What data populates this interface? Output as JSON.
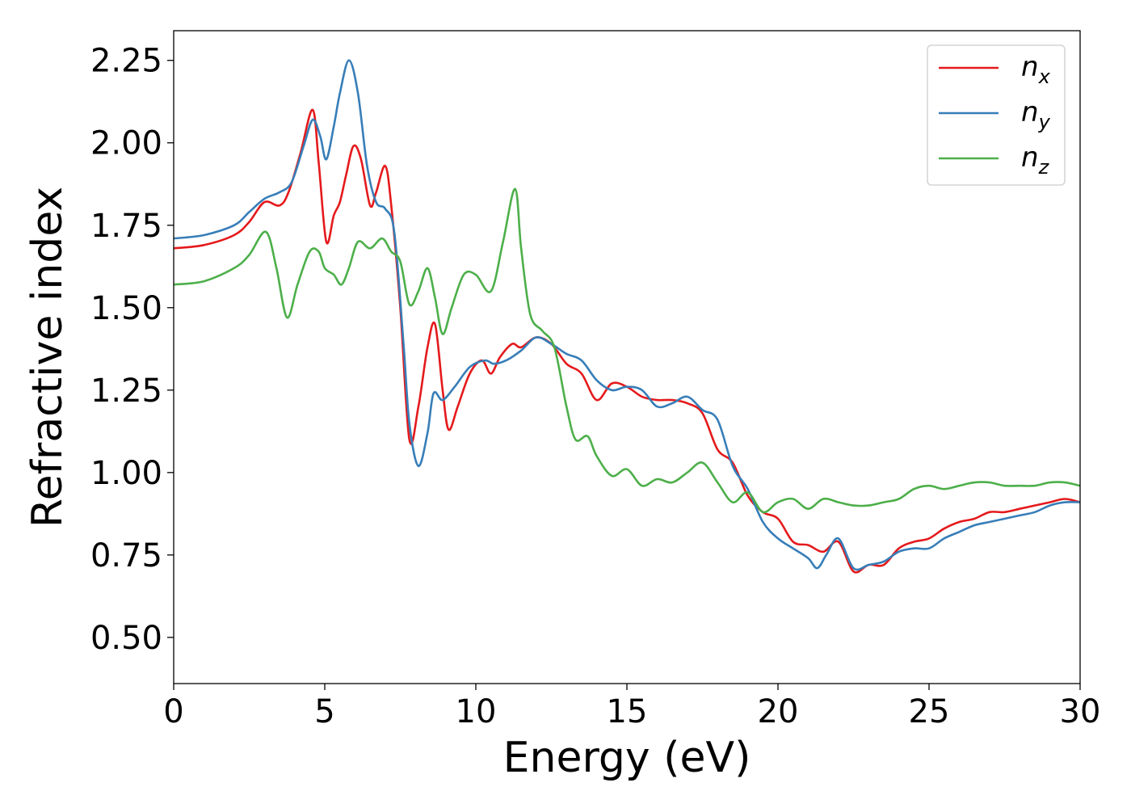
{
  "chart_data": {
    "type": "line",
    "title": "",
    "xlabel": "Energy (eV)",
    "ylabel": "Refractive index",
    "xlim": [
      0,
      30
    ],
    "ylim": [
      0.36,
      2.34
    ],
    "xticks": [
      0,
      5,
      10,
      15,
      20,
      25,
      30
    ],
    "xtick_labels": [
      "0",
      "5",
      "10",
      "15",
      "20",
      "25",
      "30"
    ],
    "yticks": [
      0.5,
      0.75,
      1.0,
      1.25,
      1.5,
      1.75,
      2.0,
      2.25
    ],
    "ytick_labels": [
      "0.50",
      "0.75",
      "1.00",
      "1.25",
      "1.50",
      "1.75",
      "2.00",
      "2.25"
    ],
    "grid": false,
    "legend_position": "top-right",
    "series": [
      {
        "name": "n",
        "subscript": "x",
        "color": "#e41a1c",
        "x": [
          0,
          1,
          2,
          2.5,
          3,
          3.5,
          3.8,
          4.2,
          4.6,
          4.8,
          5.05,
          5.3,
          5.5,
          5.7,
          5.95,
          6.2,
          6.5,
          6.7,
          7.0,
          7.2,
          7.5,
          7.8,
          8.1,
          8.4,
          8.65,
          8.9,
          9.1,
          9.4,
          9.8,
          10.2,
          10.5,
          10.8,
          11.2,
          11.5,
          12.0,
          12.5,
          13.0,
          13.5,
          14.0,
          14.5,
          15.0,
          15.5,
          16.0,
          16.5,
          17.0,
          17.5,
          18.0,
          18.5,
          19.0,
          19.5,
          20.0,
          20.5,
          21.0,
          21.5,
          22.0,
          22.5,
          23.0,
          23.5,
          24.0,
          24.5,
          25.0,
          25.5,
          26.0,
          26.5,
          27.0,
          27.5,
          28.0,
          28.5,
          29.0,
          29.5,
          30.0
        ],
        "y": [
          1.68,
          1.69,
          1.72,
          1.76,
          1.82,
          1.81,
          1.85,
          1.97,
          2.1,
          1.94,
          1.7,
          1.78,
          1.82,
          1.9,
          1.99,
          1.95,
          1.81,
          1.85,
          1.93,
          1.81,
          1.5,
          1.1,
          1.2,
          1.38,
          1.45,
          1.25,
          1.13,
          1.2,
          1.3,
          1.34,
          1.3,
          1.35,
          1.39,
          1.38,
          1.41,
          1.39,
          1.33,
          1.3,
          1.22,
          1.27,
          1.26,
          1.23,
          1.22,
          1.22,
          1.21,
          1.18,
          1.07,
          1.03,
          0.93,
          0.88,
          0.86,
          0.79,
          0.78,
          0.76,
          0.79,
          0.7,
          0.72,
          0.72,
          0.77,
          0.79,
          0.8,
          0.83,
          0.85,
          0.86,
          0.88,
          0.88,
          0.89,
          0.9,
          0.91,
          0.92,
          0.91
        ]
      },
      {
        "name": "n",
        "subscript": "y",
        "color": "#377eb8",
        "x": [
          0,
          1,
          2,
          2.5,
          3,
          3.5,
          3.9,
          4.3,
          4.6,
          4.85,
          5.05,
          5.3,
          5.5,
          5.8,
          6.1,
          6.4,
          6.7,
          7.0,
          7.3,
          7.6,
          7.8,
          8.1,
          8.4,
          8.6,
          8.9,
          9.3,
          9.8,
          10.3,
          10.6,
          11.0,
          11.5,
          12.0,
          12.5,
          13.0,
          13.5,
          14.0,
          14.5,
          15.0,
          15.5,
          16.0,
          16.5,
          17.0,
          17.5,
          18.0,
          18.5,
          19.0,
          19.5,
          20.0,
          20.5,
          21.0,
          21.3,
          21.6,
          22.0,
          22.5,
          23.0,
          23.5,
          24.0,
          24.5,
          25.0,
          25.5,
          26.0,
          26.5,
          27.0,
          27.5,
          28.0,
          28.5,
          29.0,
          29.5,
          30.0
        ],
        "y": [
          1.71,
          1.72,
          1.75,
          1.79,
          1.83,
          1.85,
          1.88,
          1.99,
          2.07,
          2.02,
          1.95,
          2.05,
          2.15,
          2.25,
          2.15,
          1.93,
          1.82,
          1.8,
          1.73,
          1.4,
          1.15,
          1.02,
          1.12,
          1.24,
          1.22,
          1.26,
          1.32,
          1.34,
          1.33,
          1.34,
          1.37,
          1.41,
          1.39,
          1.36,
          1.34,
          1.28,
          1.25,
          1.26,
          1.25,
          1.2,
          1.21,
          1.23,
          1.19,
          1.16,
          1.02,
          0.95,
          0.85,
          0.8,
          0.77,
          0.74,
          0.71,
          0.75,
          0.8,
          0.71,
          0.72,
          0.73,
          0.76,
          0.77,
          0.77,
          0.8,
          0.82,
          0.84,
          0.85,
          0.86,
          0.87,
          0.88,
          0.9,
          0.91,
          0.91
        ]
      },
      {
        "name": "n",
        "subscript": "z",
        "color": "#4daf4a",
        "x": [
          0,
          1,
          2,
          2.5,
          3.05,
          3.4,
          3.75,
          4.1,
          4.5,
          4.8,
          5.0,
          5.3,
          5.55,
          5.8,
          6.1,
          6.5,
          6.9,
          7.2,
          7.5,
          7.8,
          8.1,
          8.4,
          8.65,
          8.9,
          9.2,
          9.6,
          10.0,
          10.5,
          10.9,
          11.3,
          11.5,
          11.8,
          12.2,
          12.6,
          13.0,
          13.3,
          13.7,
          14.0,
          14.5,
          15.0,
          15.5,
          16.0,
          16.5,
          17.0,
          17.5,
          18.0,
          18.5,
          19.0,
          19.5,
          20.0,
          20.5,
          21.0,
          21.5,
          22.0,
          22.5,
          23.0,
          23.5,
          24.0,
          24.5,
          25.0,
          25.5,
          26.0,
          26.5,
          27.0,
          27.5,
          28.0,
          28.5,
          29.0,
          29.5,
          30.0
        ],
        "y": [
          1.57,
          1.58,
          1.62,
          1.66,
          1.73,
          1.62,
          1.47,
          1.57,
          1.67,
          1.67,
          1.62,
          1.6,
          1.57,
          1.62,
          1.7,
          1.68,
          1.71,
          1.67,
          1.64,
          1.51,
          1.55,
          1.62,
          1.53,
          1.42,
          1.5,
          1.6,
          1.6,
          1.55,
          1.7,
          1.86,
          1.68,
          1.48,
          1.43,
          1.38,
          1.2,
          1.1,
          1.11,
          1.05,
          0.99,
          1.01,
          0.96,
          0.98,
          0.97,
          1.0,
          1.03,
          0.97,
          0.91,
          0.94,
          0.88,
          0.91,
          0.92,
          0.89,
          0.92,
          0.91,
          0.9,
          0.9,
          0.91,
          0.92,
          0.95,
          0.96,
          0.95,
          0.96,
          0.97,
          0.97,
          0.96,
          0.96,
          0.96,
          0.97,
          0.97,
          0.96
        ]
      }
    ]
  }
}
